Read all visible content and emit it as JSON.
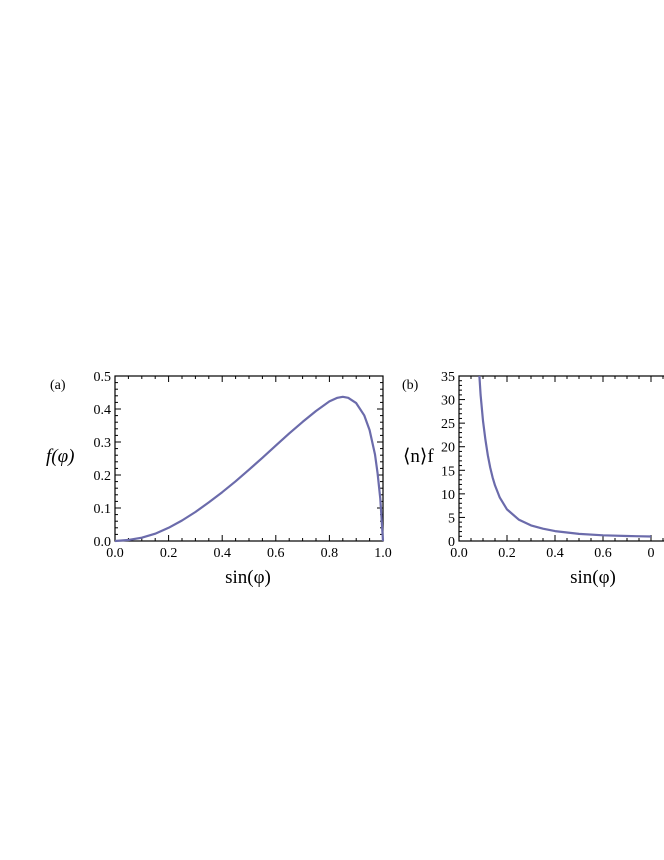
{
  "chart_data": [
    {
      "type": "line",
      "panel_label": "(a)",
      "xlabel": "sin(φ)",
      "ylabel": "f(φ)",
      "xlim": [
        0,
        1
      ],
      "ylim": [
        0,
        0.5
      ],
      "x_ticks": [
        "0.0",
        "0.2",
        "0.4",
        "0.6",
        "0.8",
        "1.0"
      ],
      "y_ticks": [
        "0.0",
        "0.1",
        "0.2",
        "0.3",
        "0.4",
        "0.5"
      ],
      "grid": false,
      "series": [
        {
          "color": "#6b6bab",
          "x": [
            0.0,
            0.05,
            0.1,
            0.15,
            0.2,
            0.25,
            0.3,
            0.35,
            0.4,
            0.45,
            0.5,
            0.55,
            0.6,
            0.65,
            0.7,
            0.75,
            0.8,
            0.83,
            0.85,
            0.87,
            0.9,
            0.93,
            0.95,
            0.97,
            0.98,
            0.99,
            1.0
          ],
          "y": [
            0.0,
            0.003,
            0.01,
            0.022,
            0.04,
            0.062,
            0.088,
            0.117,
            0.148,
            0.181,
            0.216,
            0.252,
            0.289,
            0.326,
            0.361,
            0.394,
            0.423,
            0.434,
            0.437,
            0.434,
            0.418,
            0.381,
            0.336,
            0.262,
            0.205,
            0.128,
            0.0
          ]
        }
      ]
    },
    {
      "type": "line",
      "panel_label": "(b)",
      "xlabel": "sin(φ)",
      "ylabel": "⟨n⟩f",
      "xlim": [
        0,
        1
      ],
      "ylim": [
        0,
        35
      ],
      "x_ticks": [
        "0.0",
        "0.2",
        "0.4",
        "0.6",
        "0"
      ],
      "y_ticks": [
        "0",
        "5",
        "10",
        "15",
        "20",
        "25",
        "30",
        "35"
      ],
      "grid": false,
      "series": [
        {
          "color": "#6b6bab",
          "x": [
            0.085,
            0.09,
            0.1,
            0.11,
            0.12,
            0.13,
            0.14,
            0.15,
            0.17,
            0.2,
            0.25,
            0.3,
            0.35,
            0.4,
            0.5,
            0.6,
            0.7,
            0.8
          ],
          "y": [
            35.0,
            31.0,
            25.5,
            21.5,
            18.2,
            15.6,
            13.5,
            11.8,
            9.2,
            6.7,
            4.5,
            3.3,
            2.6,
            2.1,
            1.5,
            1.2,
            1.05,
            0.95
          ]
        }
      ]
    }
  ]
}
